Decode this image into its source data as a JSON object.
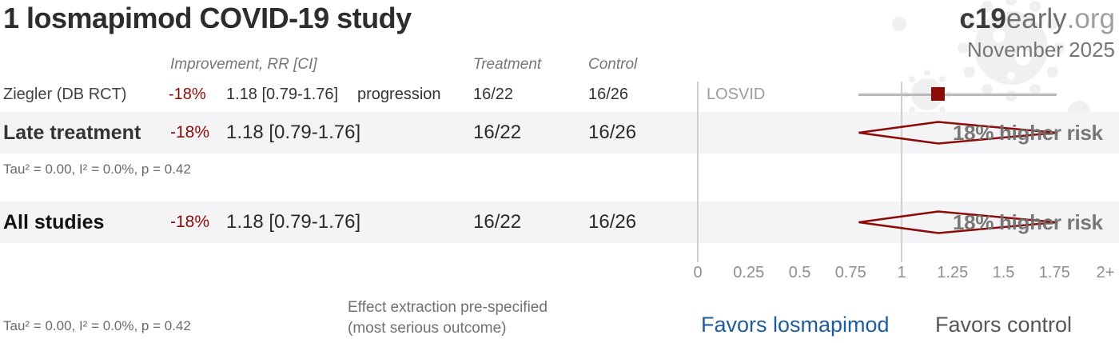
{
  "colors": {
    "accent_red": "#8b0b06",
    "link_blue": "#1f5c9f",
    "stripe": "#f4f4f6",
    "line_gray": "#cfcfcf",
    "ci_gray": "#b8b8b8"
  },
  "header": {
    "title": "1 losmapimod COVID-19 study",
    "brand_bold": "c19",
    "brand_mid": "early",
    "brand_suffix": ".org",
    "date": "November 2025"
  },
  "columns": {
    "improvement": "Improvement, RR [CI]",
    "treatment": "Treatment",
    "control": "Control"
  },
  "rows": {
    "study": {
      "name": "Ziegler (DB RCT)",
      "percent": "-18%",
      "rr_ci": "1.18 [0.79-1.76]",
      "outcome": "progression",
      "treatment": "16/22",
      "control": "16/26",
      "trial": "LOSVID"
    },
    "late": {
      "label": "Late treatment",
      "percent": "-18%",
      "rr_ci": "1.18 [0.79-1.76]",
      "treatment": "16/22",
      "control": "16/26",
      "risk_label": "18% higher risk"
    },
    "late_heterogeneity": "Tau² = 0.00, I² = 0.0%, p = 0.42",
    "all": {
      "label": "All studies",
      "percent": "-18%",
      "rr_ci": "1.18 [0.79-1.76]",
      "treatment": "16/22",
      "control": "16/26",
      "risk_label": "18% higher risk"
    }
  },
  "footer": {
    "heterogeneity": "Tau² = 0.00, I² = 0.0%, p = 0.42",
    "effect_line1": "Effect extraction pre-specified",
    "effect_line2": "(most serious outcome)",
    "favors_left": "Favors losmapimod",
    "favors_right": "Favors control"
  },
  "chart_data": {
    "type": "scatter",
    "subtype": "forest_plot",
    "title": "1 losmapimod COVID-19 study",
    "x_axis": {
      "min": 0,
      "max": 2,
      "reference_line": 1,
      "ticks": [
        {
          "value": 0,
          "label": "0"
        },
        {
          "value": 0.25,
          "label": "0.25"
        },
        {
          "value": 0.5,
          "label": "0.5"
        },
        {
          "value": 0.75,
          "label": "0.75"
        },
        {
          "value": 1,
          "label": "1"
        },
        {
          "value": 1.25,
          "label": "1.25"
        },
        {
          "value": 1.5,
          "label": "1.5"
        },
        {
          "value": 1.75,
          "label": "1.75"
        },
        {
          "value": 2,
          "label": "2+"
        }
      ]
    },
    "points": [
      {
        "label": "Ziegler (DB RCT)",
        "trial": "LOSVID",
        "rr": 1.18,
        "ci_low": 0.79,
        "ci_high": 1.76,
        "improvement": "-18%",
        "outcome": "progression",
        "treatment_events": "16/22",
        "control_events": "16/26",
        "marker": "square"
      },
      {
        "label": "Late treatment",
        "rr": 1.18,
        "ci_low": 0.79,
        "ci_high": 1.76,
        "improvement": "-18%",
        "treatment_events": "16/22",
        "control_events": "16/26",
        "marker": "diamond",
        "annotation": "18% higher risk",
        "heterogeneity": "Tau² = 0.00, I² = 0.0%, p = 0.42"
      },
      {
        "label": "All studies",
        "rr": 1.18,
        "ci_low": 0.79,
        "ci_high": 1.76,
        "improvement": "-18%",
        "treatment_events": "16/22",
        "control_events": "16/26",
        "marker": "diamond",
        "annotation": "18% higher risk",
        "heterogeneity": "Tau² = 0.00, I² = 0.0%, p = 0.42"
      }
    ],
    "favors": {
      "left": "Favors losmapimod",
      "right": "Favors control"
    },
    "legend_position": "none",
    "grid": false
  }
}
